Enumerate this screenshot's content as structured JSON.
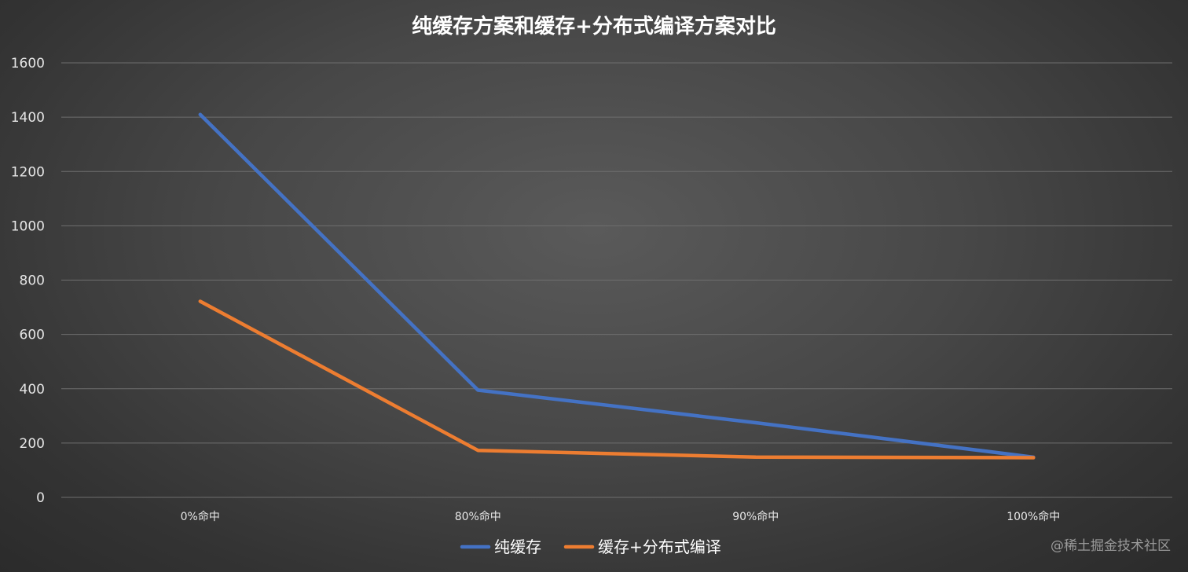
{
  "chart_data": {
    "type": "line",
    "title": "纯缓存方案和缓存+分布式编译方案对比",
    "xlabel": "",
    "ylabel": "",
    "categories": [
      "0%命中",
      "80%命中",
      "90%命中",
      "100%命中"
    ],
    "ylim": [
      0,
      1600
    ],
    "yticks": [
      0,
      200,
      400,
      600,
      800,
      1000,
      1200,
      1400,
      1600
    ],
    "grid": true,
    "legend_position": "bottom",
    "series": [
      {
        "name": "纯缓存",
        "color": "#4472c4",
        "values": [
          1410,
          395,
          275,
          148
        ]
      },
      {
        "name": "缓存+分布式编译",
        "color": "#ed7d31",
        "values": [
          722,
          173,
          148,
          146
        ]
      }
    ]
  },
  "watermark": "@稀土掘金技术社区"
}
